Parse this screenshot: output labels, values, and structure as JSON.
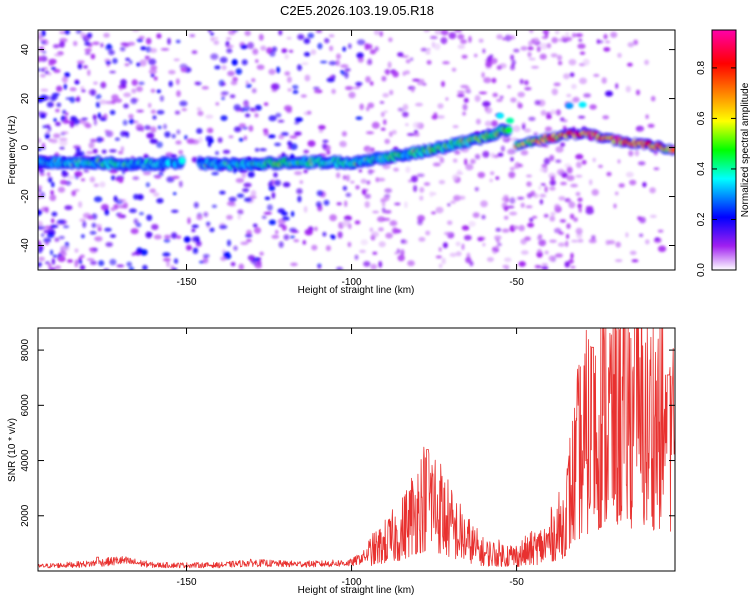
{
  "title": "C2E5.2026.103.19.05.R18",
  "colors": {
    "snr_line": "#e8312f",
    "background": "#ffffff",
    "axes": "#000000"
  },
  "chart_data": [
    {
      "type": "heatmap",
      "name": "spectrogram",
      "xlabel": "Height of straight line (km)",
      "ylabel": "Frequency (Hz)",
      "xlim": [
        -195,
        -2
      ],
      "ylim": [
        -50,
        48
      ],
      "xticks": [
        -150,
        -100,
        -50
      ],
      "yticks": [
        -40,
        -20,
        0,
        20,
        40
      ],
      "colorbar": {
        "label": "Normalized spectral amplitude",
        "range": [
          0,
          0.95
        ],
        "ticks": [
          0,
          0.2,
          0.4,
          0.6,
          0.8
        ],
        "colormap": [
          "#ffffff",
          "#a020f0",
          "#0000ff",
          "#00ffff",
          "#00ff00",
          "#ffff00",
          "#ff8000",
          "#ff0000",
          "#ff00aa"
        ]
      },
      "ridge": [
        {
          "x": -195,
          "f": -6,
          "amp": 0.3
        },
        {
          "x": -180,
          "f": -6,
          "amp": 0.4
        },
        {
          "x": -165,
          "f": -7,
          "amp": 0.38
        },
        {
          "x": -150,
          "f": -6,
          "amp": 0.32
        },
        {
          "x": -140,
          "f": -7,
          "amp": 0.36
        },
        {
          "x": -130,
          "f": -7,
          "amp": 0.4
        },
        {
          "x": -120,
          "f": -6,
          "amp": 0.45
        },
        {
          "x": -110,
          "f": -6,
          "amp": 0.42
        },
        {
          "x": -100,
          "f": -6,
          "amp": 0.4
        },
        {
          "x": -90,
          "f": -4,
          "amp": 0.4
        },
        {
          "x": -80,
          "f": -2,
          "amp": 0.45
        },
        {
          "x": -70,
          "f": 1,
          "amp": 0.48
        },
        {
          "x": -60,
          "f": 4,
          "amp": 0.5
        },
        {
          "x": -52,
          "f": 8,
          "amp": 0.45
        }
      ],
      "ridge2": [
        {
          "x": -50,
          "f": 1,
          "amp": 0.55
        },
        {
          "x": -40,
          "f": 4,
          "amp": 0.7
        },
        {
          "x": -30,
          "f": 6,
          "amp": 0.82
        },
        {
          "x": -20,
          "f": 3,
          "amp": 0.8
        },
        {
          "x": -10,
          "f": 1,
          "amp": 0.75
        },
        {
          "x": -2,
          "f": -1,
          "amp": 0.65
        }
      ]
    },
    {
      "type": "line",
      "name": "snr",
      "xlabel": "Height of straight line (km)",
      "ylabel": "SNR (10 * v/v)",
      "xlim": [
        -195,
        -2
      ],
      "ylim": [
        0,
        8800
      ],
      "xticks": [
        -150,
        -100,
        -50
      ],
      "yticks": [
        2000,
        4000,
        6000,
        8000
      ],
      "envelope": [
        {
          "x": -195,
          "y": 200
        },
        {
          "x": -180,
          "y": 300
        },
        {
          "x": -170,
          "y": 450
        },
        {
          "x": -160,
          "y": 250
        },
        {
          "x": -140,
          "y": 250
        },
        {
          "x": -130,
          "y": 350
        },
        {
          "x": -120,
          "y": 300
        },
        {
          "x": -110,
          "y": 300
        },
        {
          "x": -100,
          "y": 350
        },
        {
          "x": -92,
          "y": 900
        },
        {
          "x": -85,
          "y": 1500
        },
        {
          "x": -80,
          "y": 2500
        },
        {
          "x": -76,
          "y": 3000
        },
        {
          "x": -70,
          "y": 1800
        },
        {
          "x": -65,
          "y": 1200
        },
        {
          "x": -60,
          "y": 700
        },
        {
          "x": -50,
          "y": 600
        },
        {
          "x": -42,
          "y": 1000
        },
        {
          "x": -36,
          "y": 1800
        },
        {
          "x": -31,
          "y": 4500
        },
        {
          "x": -25,
          "y": 6000
        },
        {
          "x": -18,
          "y": 6500
        },
        {
          "x": -12,
          "y": 5800
        },
        {
          "x": -6,
          "y": 6000
        },
        {
          "x": -2,
          "y": 5500
        }
      ],
      "peaks": [
        {
          "x": -177,
          "y": 500
        },
        {
          "x": -77,
          "y": 4400
        },
        {
          "x": -27,
          "y": 8100
        },
        {
          "x": -14,
          "y": 8800
        },
        {
          "x": -4,
          "y": 7100
        }
      ]
    }
  ]
}
